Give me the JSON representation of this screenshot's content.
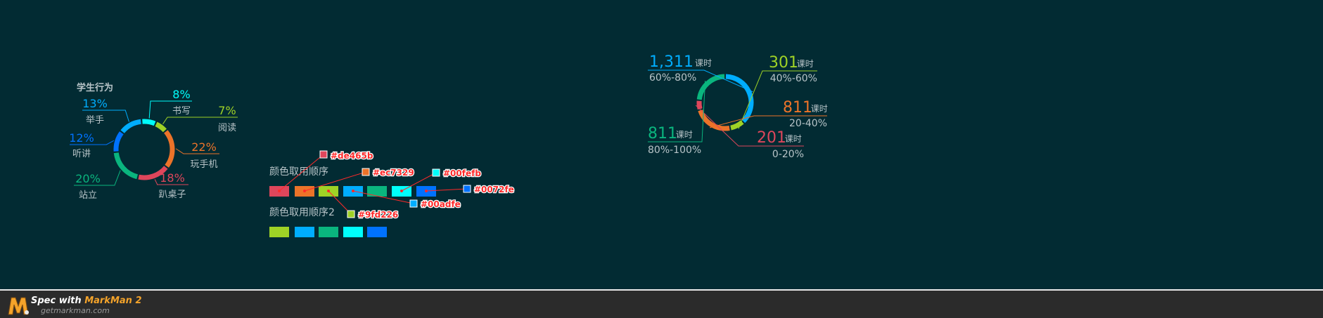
{
  "colors": {
    "background": "#022b33",
    "red": "#de465b",
    "orange": "#ec7329",
    "lime": "#9fd226",
    "blue": "#00adfe",
    "green": "#0ab57e",
    "cyan": "#00fefb",
    "deepblue": "#0072fe",
    "label_gray": "#b8c4c8",
    "annotation_red": "#ff2a2a"
  },
  "chart_data": [
    {
      "type": "pie",
      "variant": "donut",
      "title": "学生行为",
      "slices": [
        {
          "label": "举手",
          "value": 13,
          "display": "13%",
          "color": "#00adfe"
        },
        {
          "label": "书写",
          "value": 8,
          "display": "8%",
          "color": "#00fefb"
        },
        {
          "label": "阅读",
          "value": 7,
          "display": "7%",
          "color": "#9fd226"
        },
        {
          "label": "玩手机",
          "value": 22,
          "display": "22%",
          "color": "#ec7329"
        },
        {
          "label": "趴桌子",
          "value": 18,
          "display": "18%",
          "color": "#de465b"
        },
        {
          "label": "站立",
          "value": 20,
          "display": "20%",
          "color": "#0ab57e"
        },
        {
          "label": "听讲",
          "value": 12,
          "display": "12%",
          "color": "#0072fe"
        }
      ]
    },
    {
      "type": "pie",
      "variant": "donut",
      "unit": "课时",
      "slices": [
        {
          "value": 1311,
          "display": "1,311",
          "range": "60%-80%",
          "color": "#00adfe"
        },
        {
          "value": 301,
          "display": "301",
          "range": "40%-60%",
          "color": "#9fd226"
        },
        {
          "value": 811,
          "display": "811",
          "range": "20-40%",
          "color": "#ec7329"
        },
        {
          "value": 201,
          "display": "201",
          "range": "0-20%",
          "color": "#de465b"
        },
        {
          "value": 811,
          "display": "811",
          "range": "80%-100%",
          "color": "#0ab57e"
        }
      ]
    }
  ],
  "palette": {
    "order1_title": "颜色取用顺序",
    "order1": [
      "#de465b",
      "#ec7329",
      "#9fd226",
      "#00adfe",
      "#0ab57e",
      "#00fefb",
      "#0072fe"
    ],
    "order2_title": "颜色取用顺序2",
    "order2": [
      "#9fd226",
      "#00adfe",
      "#0ab57e",
      "#00fefb",
      "#0072fe"
    ],
    "annotations": [
      "#de465b",
      "#ec7329",
      "#00fefb",
      "#0072fe",
      "#00adfe",
      "#9fd226"
    ]
  },
  "footer": {
    "spec_prefix": "Spec with ",
    "brand": "MarkMan 2",
    "site": "getmarkman.com"
  }
}
